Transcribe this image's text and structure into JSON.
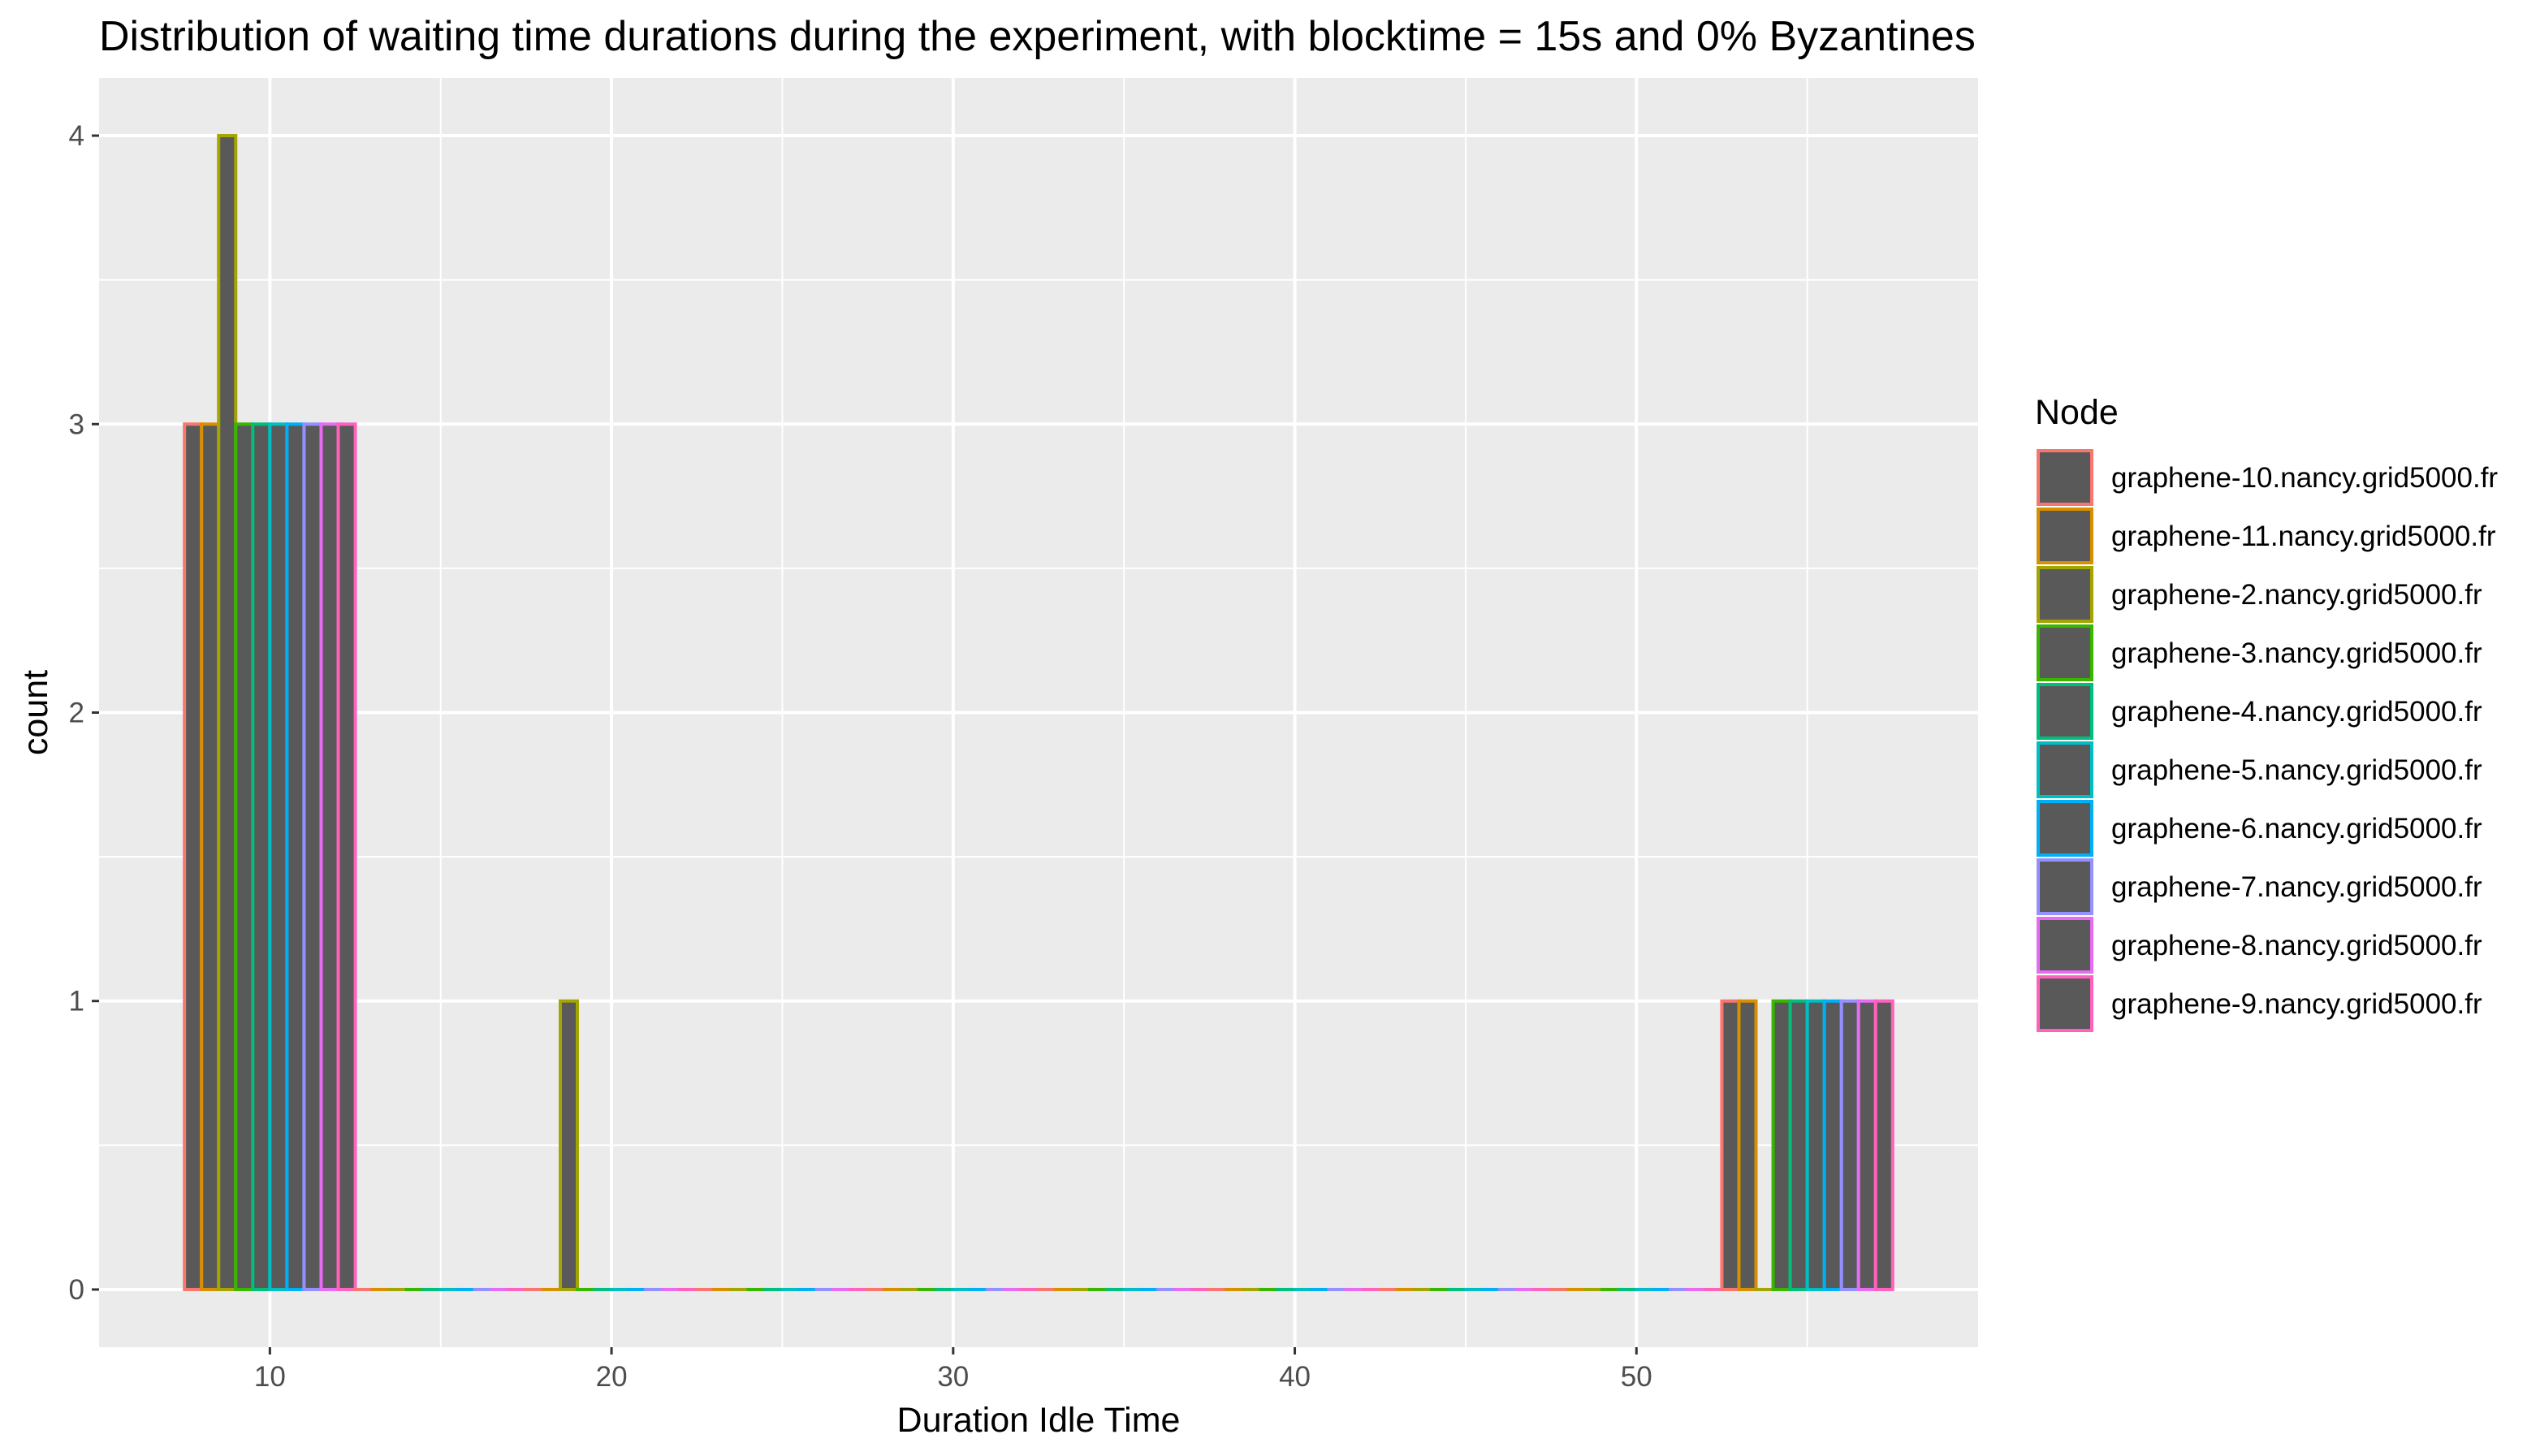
{
  "chart_data": {
    "type": "bar",
    "subtype": "histogram",
    "title": "Distribution of waiting time durations during the experiment, with blocktime = 15s and 0% Byzantines",
    "xlabel": "Duration Idle Time",
    "ylabel": "count",
    "xlim": [
      5,
      60
    ],
    "ylim": [
      -0.2,
      4.2
    ],
    "x_ticks": [
      10,
      20,
      30,
      40,
      50
    ],
    "y_ticks": [
      0,
      1,
      2,
      3,
      4
    ],
    "grid": true,
    "legend_position": "right",
    "legend_title": "Node",
    "bar_fill": "#595959",
    "bins": [
      {
        "start": 7.5,
        "end": 12.5
      },
      {
        "start": 12.5,
        "end": 17.5
      },
      {
        "start": 17.5,
        "end": 22.5
      },
      {
        "start": 22.5,
        "end": 27.5
      },
      {
        "start": 27.5,
        "end": 32.5
      },
      {
        "start": 32.5,
        "end": 37.5
      },
      {
        "start": 37.5,
        "end": 42.5
      },
      {
        "start": 42.5,
        "end": 47.5
      },
      {
        "start": 47.5,
        "end": 52.5
      },
      {
        "start": 52.5,
        "end": 57.5
      }
    ],
    "series": [
      {
        "name": "graphene-10.nancy.grid5000.fr",
        "color": "#F8766D",
        "values": [
          3,
          0,
          0,
          0,
          0,
          0,
          0,
          0,
          0,
          1
        ]
      },
      {
        "name": "graphene-11.nancy.grid5000.fr",
        "color": "#D89000",
        "values": [
          3,
          0,
          0,
          0,
          0,
          0,
          0,
          0,
          0,
          1
        ]
      },
      {
        "name": "graphene-2.nancy.grid5000.fr",
        "color": "#A3A500",
        "values": [
          4,
          0,
          1,
          0,
          0,
          0,
          0,
          0,
          0,
          0
        ]
      },
      {
        "name": "graphene-3.nancy.grid5000.fr",
        "color": "#39B600",
        "values": [
          3,
          0,
          0,
          0,
          0,
          0,
          0,
          0,
          0,
          1
        ]
      },
      {
        "name": "graphene-4.nancy.grid5000.fr",
        "color": "#00BF7D",
        "values": [
          3,
          0,
          0,
          0,
          0,
          0,
          0,
          0,
          0,
          1
        ]
      },
      {
        "name": "graphene-5.nancy.grid5000.fr",
        "color": "#00BFC4",
        "values": [
          3,
          0,
          0,
          0,
          0,
          0,
          0,
          0,
          0,
          1
        ]
      },
      {
        "name": "graphene-6.nancy.grid5000.fr",
        "color": "#00B0F6",
        "values": [
          3,
          0,
          0,
          0,
          0,
          0,
          0,
          0,
          0,
          1
        ]
      },
      {
        "name": "graphene-7.nancy.grid5000.fr",
        "color": "#9590FF",
        "values": [
          3,
          0,
          0,
          0,
          0,
          0,
          0,
          0,
          0,
          1
        ]
      },
      {
        "name": "graphene-8.nancy.grid5000.fr",
        "color": "#E76BF3",
        "values": [
          3,
          0,
          0,
          0,
          0,
          0,
          0,
          0,
          0,
          1
        ]
      },
      {
        "name": "graphene-9.nancy.grid5000.fr",
        "color": "#FF62BC",
        "values": [
          3,
          0,
          0,
          0,
          0,
          0,
          0,
          0,
          0,
          1
        ]
      }
    ]
  }
}
